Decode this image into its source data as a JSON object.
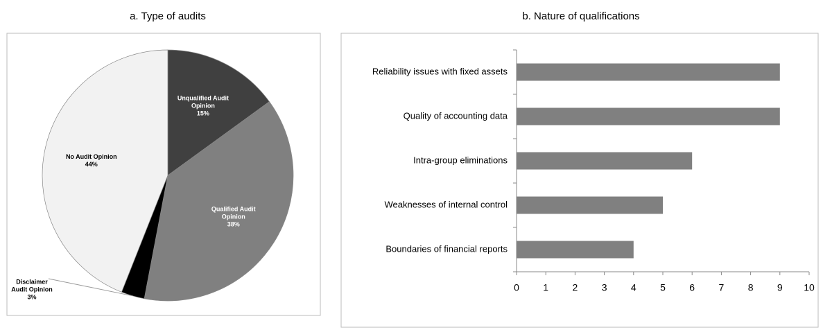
{
  "chart_data": [
    {
      "type": "pie",
      "title": "a. Type of audits",
      "categories": [
        "Unqualified Audit Opinion",
        "Qualified Audit Opinion",
        "Disclaimer Audit Opinion",
        "No Audit Opinion"
      ],
      "values": [
        15,
        38,
        3,
        44
      ],
      "value_labels": [
        "15%",
        "38%",
        "3%",
        "44%"
      ],
      "colors": [
        "#404040",
        "#808080",
        "#000000",
        "#f2f2f2"
      ]
    },
    {
      "type": "hbar",
      "title": "b. Nature of qualifications",
      "categories": [
        "Reliability issues with fixed assets",
        "Quality of accounting data",
        "Intra-group eliminations",
        "Weaknesses of internal control",
        "Boundaries of financial reports"
      ],
      "values": [
        9,
        9,
        6,
        5,
        4
      ],
      "color": "#808080",
      "xlim": [
        0,
        10
      ],
      "xticks": [
        0,
        1,
        2,
        3,
        4,
        5,
        6,
        7,
        8,
        9,
        10
      ]
    }
  ]
}
